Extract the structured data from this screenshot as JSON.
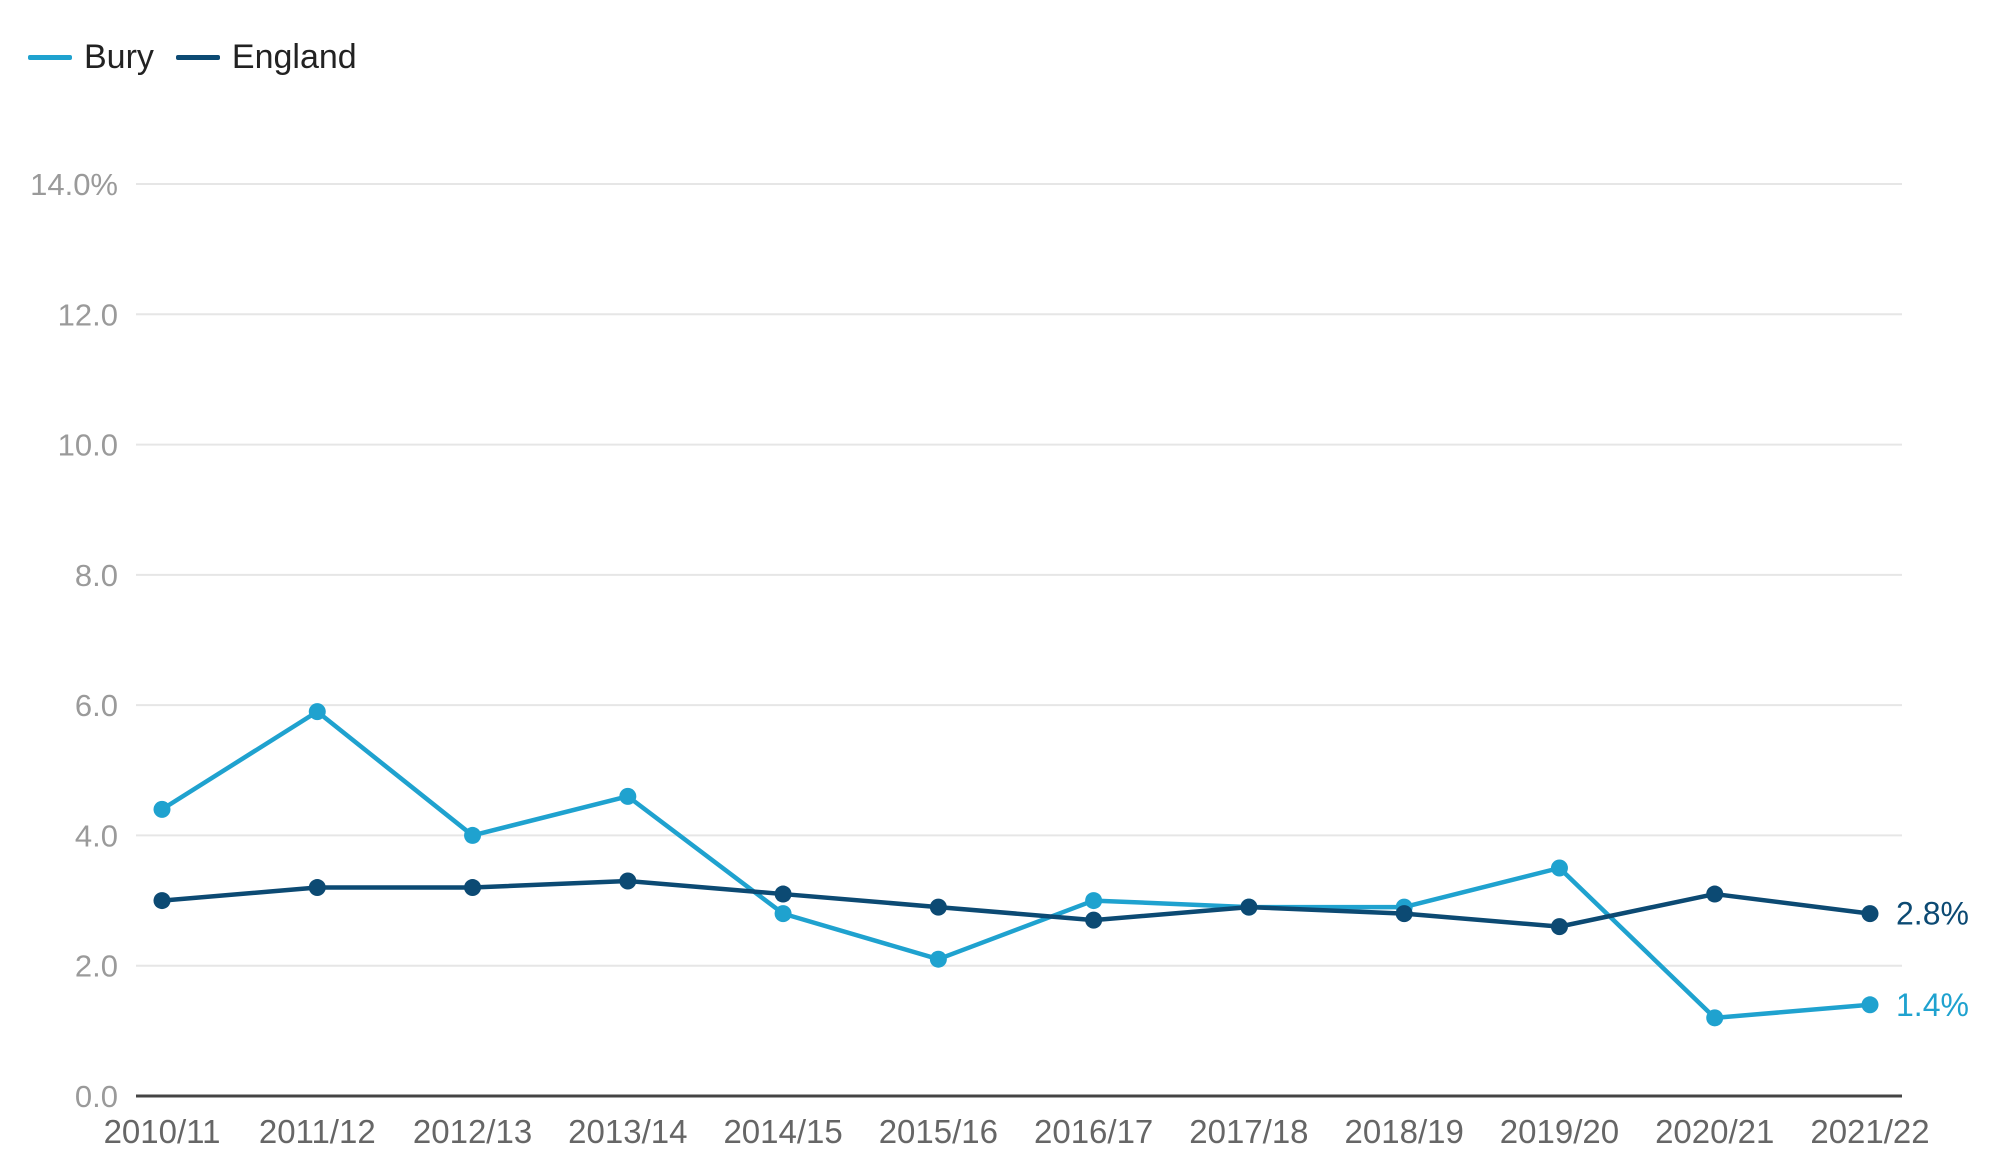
{
  "legend": {
    "items": [
      {
        "label": "Bury",
        "color": "#1fa2cf"
      },
      {
        "label": "England",
        "color": "#0c4a73"
      }
    ]
  },
  "chart_data": {
    "type": "line",
    "title": "",
    "xlabel": "",
    "ylabel": "",
    "categories": [
      "2010/11",
      "2011/12",
      "2012/13",
      "2013/14",
      "2014/15",
      "2015/16",
      "2016/17",
      "2017/18",
      "2018/19",
      "2019/20",
      "2020/21",
      "2021/22"
    ],
    "ylim": [
      0,
      14
    ],
    "yticks": [
      0,
      2,
      4,
      6,
      8,
      10,
      12,
      14
    ],
    "ytick_labels": [
      "0.0",
      "2.0",
      "4.0",
      "6.0",
      "8.0",
      "10.0",
      "12.0",
      "14.0%"
    ],
    "grid": true,
    "legend_position": "top-left",
    "series": [
      {
        "name": "Bury",
        "color": "#1fa2cf",
        "values": [
          4.4,
          5.9,
          4.0,
          4.6,
          2.8,
          2.1,
          3.0,
          2.9,
          2.9,
          3.5,
          1.2,
          1.4
        ],
        "end_label": "1.4%"
      },
      {
        "name": "England",
        "color": "#0c4a73",
        "values": [
          3.0,
          3.2,
          3.2,
          3.3,
          3.1,
          2.9,
          2.7,
          2.9,
          2.8,
          2.6,
          3.1,
          2.8
        ],
        "end_label": "2.8%"
      }
    ]
  }
}
